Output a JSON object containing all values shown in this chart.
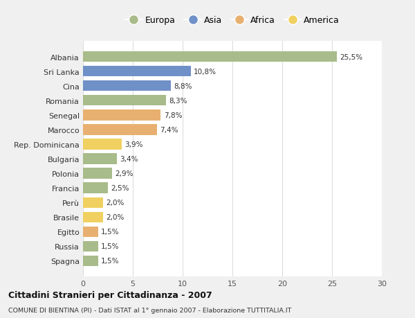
{
  "categories": [
    "Spagna",
    "Russia",
    "Egitto",
    "Brasile",
    "Perù",
    "Francia",
    "Polonia",
    "Bulgaria",
    "Rep. Dominicana",
    "Marocco",
    "Senegal",
    "Romania",
    "Cina",
    "Sri Lanka",
    "Albania"
  ],
  "values": [
    1.5,
    1.5,
    1.5,
    2.0,
    2.0,
    2.5,
    2.9,
    3.4,
    3.9,
    7.4,
    7.8,
    8.3,
    8.8,
    10.8,
    25.5
  ],
  "labels": [
    "1,5%",
    "1,5%",
    "1,5%",
    "2,0%",
    "2,0%",
    "2,5%",
    "2,9%",
    "3,4%",
    "3,9%",
    "7,4%",
    "7,8%",
    "8,3%",
    "8,8%",
    "10,8%",
    "25,5%"
  ],
  "colors": [
    "#a8bb8a",
    "#a8bb8a",
    "#e8b070",
    "#f0d060",
    "#f0d060",
    "#a8bb8a",
    "#a8bb8a",
    "#a8bb8a",
    "#f0d060",
    "#e8b070",
    "#e8b070",
    "#a8bb8a",
    "#7090c8",
    "#7090c8",
    "#a8bb8a"
  ],
  "continent_colors": {
    "Europa": "#a8bb8a",
    "Asia": "#7090c8",
    "Africa": "#e8b070",
    "America": "#f0d060"
  },
  "title": "Cittadini Stranieri per Cittadinanza - 2007",
  "subtitle": "COMUNE DI BIENTINA (PI) - Dati ISTAT al 1° gennaio 2007 - Elaborazione TUTTITALIA.IT",
  "xlim": [
    0,
    30
  ],
  "xticks": [
    0,
    5,
    10,
    15,
    20,
    25,
    30
  ],
  "fig_bg": "#f0f0f0",
  "plot_bg": "#ffffff",
  "grid_color": "#dddddd"
}
